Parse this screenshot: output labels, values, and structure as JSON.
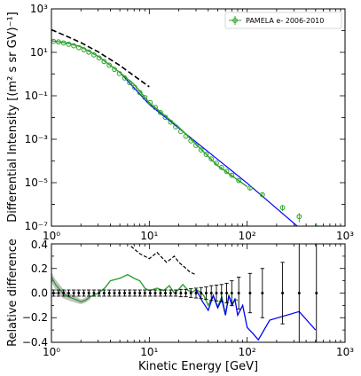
{
  "chart_data": [
    {
      "type": "line",
      "panel": "top",
      "xscale": "log",
      "yscale": "log",
      "xlim": [
        1,
        1000
      ],
      "ylim": [
        1e-07,
        1000
      ],
      "ylabel": "Differential Intensity [(m² s sr GV)⁻¹]",
      "x_tick_labels": [
        "10⁰",
        "10¹",
        "10²",
        "10³"
      ],
      "y_tick_labels": [
        "10⁻⁷",
        "10⁻⁵",
        "10⁻³",
        "10⁻¹",
        "10¹",
        "10³"
      ],
      "legend": {
        "position": "top-right",
        "entries": [
          "PAMELA e- 2006-2010"
        ]
      },
      "series": [
        {
          "name": "PAMELA e- 2006-2010",
          "style": "points-with-errorbars",
          "color": "#2ca02c",
          "x": [
            1.05,
            1.18,
            1.33,
            1.5,
            1.69,
            1.9,
            2.14,
            2.41,
            2.72,
            3.07,
            3.45,
            3.9,
            4.4,
            4.95,
            5.6,
            6.3,
            7.1,
            8.0,
            9.0,
            10.2,
            11.5,
            13.0,
            14.6,
            16.5,
            18.6,
            21.0,
            23.6,
            26.6,
            30.0,
            33.8,
            38.1,
            43.0,
            48.5,
            54.7,
            61.7,
            69.6,
            82,
            107,
            143,
            230,
            340,
            510
          ],
          "y": [
            32,
            30,
            27,
            23.5,
            20,
            16.5,
            13.2,
            10.2,
            7.6,
            5.5,
            3.8,
            2.55,
            1.65,
            1.05,
            0.66,
            0.4,
            0.24,
            0.14,
            0.083,
            0.049,
            0.029,
            0.017,
            0.0102,
            0.0061,
            0.0037,
            0.00225,
            0.00137,
            0.00084,
            0.00052,
            0.00032,
            0.0002,
            0.000125,
            7.9e-05,
            5e-05,
            3.3e-05,
            2.2e-05,
            1.25e-05,
            5.7e-06,
            2.8e-06,
            7.1e-07,
            2.75e-07,
            8.5e-08
          ],
          "yerr_rel": [
            0.02,
            0.02,
            0.02,
            0.02,
            0.02,
            0.02,
            0.02,
            0.02,
            0.02,
            0.02,
            0.02,
            0.02,
            0.02,
            0.02,
            0.02,
            0.02,
            0.02,
            0.02,
            0.02,
            0.02,
            0.02,
            0.02,
            0.03,
            0.03,
            0.03,
            0.03,
            0.04,
            0.04,
            0.04,
            0.05,
            0.06,
            0.07,
            0.08,
            0.09,
            0.1,
            0.12,
            0.14,
            0.18,
            0.22,
            0.3,
            0.45,
            0.6
          ]
        },
        {
          "style": "dashed",
          "color": "#000000",
          "x": [
            1,
            1.5,
            2,
            3,
            5,
            7,
            10
          ],
          "y": [
            110,
            50,
            28,
            10.5,
            2.5,
            0.82,
            0.26
          ]
        },
        {
          "style": "solid",
          "color": "#0000ff",
          "x": [
            5,
            10,
            100,
            1000
          ],
          "y": [
            1.2,
            0.04,
            9.5e-06,
            1.3e-09
          ]
        },
        {
          "style": "solid",
          "color": "#2ca02c",
          "x": [
            1,
            1.5,
            2,
            3,
            5,
            7,
            10,
            20,
            50,
            100
          ],
          "y": [
            34,
            26,
            18,
            6.6,
            1.18,
            0.33,
            0.048,
            0.0036,
            6e-05,
            6.6e-06
          ]
        }
      ]
    },
    {
      "type": "line",
      "panel": "bottom",
      "xscale": "log",
      "xlim": [
        1,
        1000
      ],
      "ylim": [
        -0.4,
        0.4
      ],
      "xlabel": "Kinetic Energy [GeV]",
      "ylabel": "Relative difference",
      "x_tick_labels": [
        "10⁰",
        "10¹",
        "10²",
        "10³"
      ],
      "y_tick_labels": [
        "−0.4",
        "−0.2",
        "0.0",
        "0.2",
        "0.4"
      ],
      "series": [
        {
          "style": "points-with-errorbars",
          "color": "#000000",
          "x": [
            1.05,
            1.18,
            1.33,
            1.5,
            1.69,
            1.9,
            2.14,
            2.41,
            2.72,
            3.07,
            3.45,
            3.9,
            4.4,
            4.95,
            5.6,
            6.3,
            7.1,
            8.0,
            9.0,
            10.2,
            11.5,
            13.0,
            14.6,
            16.5,
            18.6,
            21.0,
            23.6,
            26.6,
            30.0,
            33.8,
            38.1,
            43.0,
            48.5,
            54.7,
            61.7,
            69.6,
            82,
            107,
            143,
            230,
            340,
            510
          ],
          "y": [
            0,
            0,
            0,
            0,
            0,
            0,
            0,
            0,
            0,
            0,
            0,
            0,
            0,
            0,
            0,
            0,
            0,
            0,
            0,
            0,
            0,
            0,
            0,
            0,
            0,
            0,
            0,
            0,
            0,
            0,
            0,
            0,
            0,
            0,
            0,
            0,
            0,
            0,
            0,
            0,
            0,
            0
          ],
          "yerr": [
            0.025,
            0.025,
            0.025,
            0.025,
            0.025,
            0.025,
            0.025,
            0.025,
            0.025,
            0.025,
            0.025,
            0.025,
            0.025,
            0.025,
            0.025,
            0.025,
            0.025,
            0.025,
            0.025,
            0.025,
            0.025,
            0.025,
            0.025,
            0.025,
            0.025,
            0.03,
            0.03,
            0.035,
            0.04,
            0.045,
            0.05,
            0.06,
            0.065,
            0.07,
            0.08,
            0.1,
            0.13,
            0.16,
            0.2,
            0.25,
            0.5,
            0.5
          ]
        },
        {
          "style": "band",
          "color": "#999999",
          "x": [
            1,
            1.1,
            1.3,
            1.5,
            1.8,
            2.0,
            2.2,
            2.5
          ],
          "y_low": [
            0.09,
            0.03,
            -0.04,
            -0.06,
            -0.08,
            -0.09,
            -0.08,
            -0.05
          ],
          "y_high": [
            0.17,
            0.11,
            0.04,
            0.0,
            -0.03,
            -0.05,
            -0.04,
            -0.01
          ]
        },
        {
          "style": "solid",
          "color": "#0000ff",
          "x": [
            30,
            35,
            40,
            45,
            50,
            55,
            60,
            65,
            70,
            75,
            80,
            90,
            100,
            115,
            130,
            170,
            340,
            500
          ],
          "y": [
            0.03,
            -0.07,
            -0.14,
            -0.02,
            -0.12,
            -0.05,
            -0.18,
            -0.02,
            -0.1,
            -0.05,
            -0.18,
            -0.1,
            -0.28,
            -0.33,
            -0.38,
            -0.22,
            -0.15,
            -0.3
          ]
        },
        {
          "style": "solid",
          "color": "#2ca02c",
          "x": [
            1,
            1.1,
            1.3,
            1.5,
            1.8,
            2.0,
            2.2,
            2.5,
            3,
            3.5,
            4,
            5,
            6,
            7,
            8,
            9,
            10,
            12,
            14,
            16,
            18,
            20,
            22,
            25,
            28,
            30,
            33,
            36,
            40,
            45,
            50,
            55,
            60,
            65,
            70,
            75,
            80
          ],
          "y": [
            0.13,
            0.07,
            0.0,
            -0.03,
            -0.055,
            -0.07,
            -0.06,
            -0.03,
            0.0,
            0.04,
            0.1,
            0.12,
            0.15,
            0.12,
            0.1,
            0.04,
            0.02,
            0.04,
            0.02,
            0.06,
            0.0,
            0.03,
            0.07,
            0.02,
            0.01,
            0.03,
            0.01,
            -0.02,
            -0.1,
            -0.02,
            -0.11,
            -0.03,
            -0.17,
            -0.02,
            -0.09,
            -0.05,
            -0.06
          ]
        },
        {
          "style": "dashed",
          "color": "#000000",
          "x": [
            6.5,
            8,
            10,
            12,
            15,
            18,
            20,
            23,
            26,
            30
          ],
          "y": [
            0.38,
            0.32,
            0.28,
            0.33,
            0.25,
            0.3,
            0.25,
            0.21,
            0.17,
            0.15
          ]
        }
      ]
    }
  ]
}
